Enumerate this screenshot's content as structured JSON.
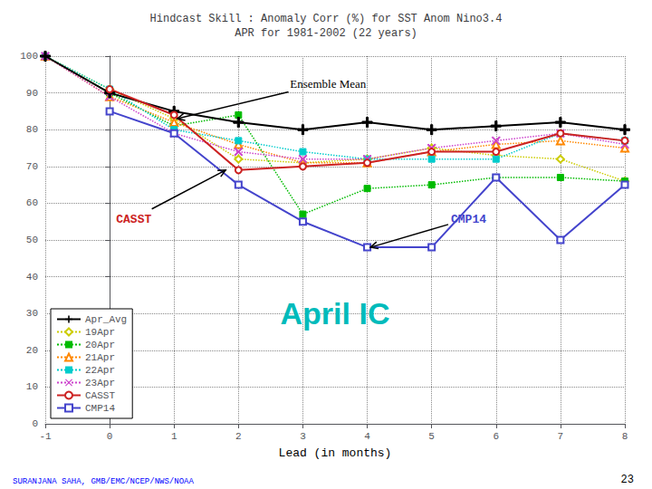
{
  "chart_data": {
    "type": "line",
    "title": "Hindcast Skill : Anomaly Corr (%) for SST Anom Nino3.4\nAPR for 1981-2002 (22 years)",
    "xlabel": "Lead (in months)",
    "xlim": [
      -1,
      8
    ],
    "ylim": [
      0,
      100
    ],
    "xticks": [
      -1,
      0,
      1,
      2,
      3,
      4,
      5,
      6,
      7,
      8
    ],
    "yticks": [
      0,
      10,
      20,
      30,
      40,
      50,
      60,
      70,
      80,
      90,
      100
    ],
    "grid": true,
    "legend": "lower left",
    "series": [
      {
        "name": "Apr_Avg",
        "color": "#000000",
        "marker": "plus",
        "line_style": "solid",
        "x": [
          -1,
          0,
          1,
          2,
          3,
          4,
          5,
          6,
          7,
          8
        ],
        "values": [
          100,
          90,
          85,
          82,
          80,
          82,
          80,
          81,
          82,
          80
        ]
      },
      {
        "name": "19Apr",
        "color": "#cccc00",
        "marker": "open_diamond",
        "line_style": "dotted",
        "x": [
          -1,
          0,
          1,
          2,
          3,
          4,
          5,
          6,
          7,
          8
        ],
        "values": [
          100,
          91,
          83,
          72,
          71,
          72,
          75,
          73,
          72,
          66
        ]
      },
      {
        "name": "20Apr",
        "color": "#00bb00",
        "marker": "square",
        "line_style": "dotted",
        "x": [
          -1,
          0,
          1,
          2,
          3,
          4,
          5,
          6,
          7,
          8
        ],
        "values": [
          100,
          90,
          81,
          84,
          57,
          64,
          65,
          67,
          67,
          66
        ]
      },
      {
        "name": "21Apr",
        "color": "#ff8800",
        "marker": "open_triangle",
        "line_style": "dotted",
        "x": [
          -1,
          0,
          1,
          2,
          3,
          4,
          5,
          6,
          7,
          8
        ],
        "values": [
          100,
          89,
          82,
          76,
          71,
          71,
          74,
          76,
          77,
          75
        ]
      },
      {
        "name": "22Apr",
        "color": "#00cccc",
        "marker": "square",
        "line_style": "dotted",
        "x": [
          -1,
          0,
          1,
          2,
          3,
          4,
          5,
          6,
          7,
          8
        ],
        "values": [
          100,
          91,
          80,
          77,
          74,
          72,
          72,
          72,
          79,
          77
        ]
      },
      {
        "name": "23Apr",
        "color": "#cc44cc",
        "marker": "x",
        "line_style": "dotted",
        "x": [
          -1,
          0,
          1,
          2,
          3,
          4,
          5,
          6,
          7,
          8
        ],
        "values": [
          100,
          89,
          79,
          74,
          72,
          72,
          75,
          77,
          79,
          76
        ]
      },
      {
        "name": "CASST",
        "color": "#cc2222",
        "marker": "open_circle",
        "line_style": "solid",
        "x": [
          0,
          1,
          2,
          3,
          4,
          5,
          6,
          7,
          8
        ],
        "values": [
          91,
          84,
          69,
          70,
          71,
          74,
          74,
          79,
          77
        ]
      },
      {
        "name": "CMP14",
        "color": "#4444cc",
        "marker": "open_square",
        "line_style": "solid",
        "x": [
          0,
          1,
          2,
          3,
          4,
          5,
          6,
          7,
          8
        ],
        "values": [
          85,
          79,
          65,
          55,
          48,
          48,
          67,
          50,
          65
        ]
      }
    ],
    "annotations": [
      {
        "text": "Ensemble Mean",
        "xy": [
          1.05,
          83
        ],
        "xytext": [
          2.8,
          91
        ]
      },
      {
        "text": "CASST",
        "xy": [
          1.8,
          69
        ],
        "xytext": [
          0.1,
          54
        ],
        "color": "#cc2222"
      },
      {
        "text": "CMP14",
        "xy": [
          4.05,
          48
        ],
        "xytext": [
          5.3,
          54
        ],
        "color": "#4444cc"
      },
      {
        "text": "April IC",
        "xy": [
          3.5,
          30
        ],
        "color": "#00bbbb"
      }
    ],
    "footer": "SURANJANA SAHA, GMB/EMC/NCEP/NWS/NOAA",
    "page_number": "23"
  }
}
